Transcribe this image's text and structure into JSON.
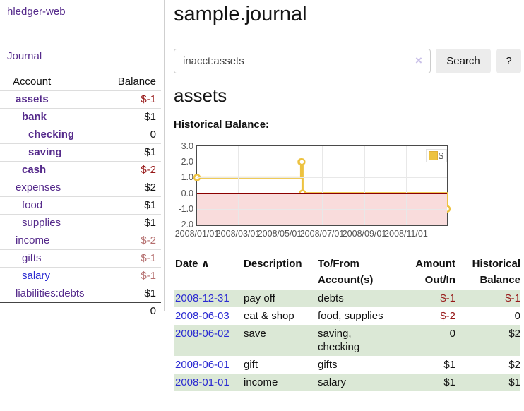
{
  "sidebar": {
    "brand": "hledger-web",
    "journal_link": "Journal",
    "accounts_table": {
      "headers": {
        "account": "Account",
        "balance": "Balance"
      },
      "rows": [
        {
          "name": "assets",
          "balance": "$-1"
        },
        {
          "name": "bank",
          "balance": "$1"
        },
        {
          "name": "checking",
          "balance": "0"
        },
        {
          "name": "saving",
          "balance": "$1"
        },
        {
          "name": "cash",
          "balance": "$-2"
        },
        {
          "name": "expenses",
          "balance": "$2"
        },
        {
          "name": "food",
          "balance": "$1"
        },
        {
          "name": "supplies",
          "balance": "$1"
        },
        {
          "name": "income",
          "balance": "$-2"
        },
        {
          "name": "gifts",
          "balance": "$-1"
        },
        {
          "name": "salary",
          "balance": "$-1"
        },
        {
          "name": "liabilities:debts",
          "balance": "$1"
        }
      ],
      "total": "0"
    }
  },
  "main": {
    "title": "sample.journal",
    "search": {
      "value": "inacct:assets",
      "clear_icon": "×",
      "search_button": "Search",
      "help_button": "?"
    },
    "account_heading": "assets",
    "chart_label": "Historical Balance:"
  },
  "chart_data": {
    "type": "line",
    "step": true,
    "title": "Historical Balance:",
    "xlabel": "",
    "ylabel": "",
    "xlim": [
      "2008-01-01",
      "2008-12-31"
    ],
    "ylim": [
      -2,
      3
    ],
    "grid": true,
    "legend_position": "top-right",
    "y_ticks": [
      {
        "value": 3,
        "label": "3.0"
      },
      {
        "value": 2,
        "label": "2.0"
      },
      {
        "value": 1,
        "label": "1.0"
      },
      {
        "value": 0,
        "label": "0.0"
      },
      {
        "value": -1,
        "label": "-1.0"
      },
      {
        "value": -2,
        "label": "-2.0"
      }
    ],
    "x_ticks": [
      {
        "date": "2008-01-01",
        "label": "2008/01/01"
      },
      {
        "date": "2008-03-01",
        "label": "2008/03/01"
      },
      {
        "date": "2008-05-01",
        "label": "2008/05/01"
      },
      {
        "date": "2008-07-01",
        "label": "2008/07/01"
      },
      {
        "date": "2008-09-01",
        "label": "2008/09/01"
      },
      {
        "date": "2008-11-01",
        "label": "2008/11/01"
      }
    ],
    "series": [
      {
        "name": "$",
        "color": "#edc240",
        "marker_fill": "#ffffff",
        "points": [
          {
            "date": "2008-01-01",
            "value": 1
          },
          {
            "date": "2008-06-01",
            "value": 2
          },
          {
            "date": "2008-06-02",
            "value": 2
          },
          {
            "date": "2008-06-03",
            "value": 0
          },
          {
            "date": "2008-12-31",
            "value": -1
          }
        ]
      }
    ],
    "zero_line_color": "#8b0000",
    "negative_region_fill": "#f9dcdc",
    "grid_color": "#e8e8e8"
  },
  "register": {
    "headers": {
      "date": "Date",
      "sort_icon": "∧",
      "description": "Description",
      "tofrom": "To/From\nAccount(s)",
      "amount": "Amount\nOut/In",
      "balance": "Historical\nBalance"
    },
    "rows": [
      {
        "date": "2008-12-31",
        "description": "pay off",
        "tofrom": "debts",
        "amount": "$-1",
        "balance": "$-1"
      },
      {
        "date": "2008-06-03",
        "description": "eat & shop",
        "tofrom": "food, supplies",
        "amount": "$-2",
        "balance": "0"
      },
      {
        "date": "2008-06-02",
        "description": "save",
        "tofrom": "saving,\nchecking",
        "amount": "0",
        "balance": "$2"
      },
      {
        "date": "2008-06-01",
        "description": "gift",
        "tofrom": "gifts",
        "amount": "$1",
        "balance": "$2"
      },
      {
        "date": "2008-01-01",
        "description": "income",
        "tofrom": "salary",
        "amount": "$1",
        "balance": "$1"
      }
    ]
  },
  "colors": {
    "link_purple": "#552a8b",
    "link_blue": "#2a2ad2",
    "negative_strong": "#961717",
    "negative_soft": "#b56f6f",
    "row_green": "#dbe8d6",
    "series_yellow": "#edc240",
    "chart_negative_bg": "#f9dcdc",
    "zero_line": "#8b0000"
  }
}
